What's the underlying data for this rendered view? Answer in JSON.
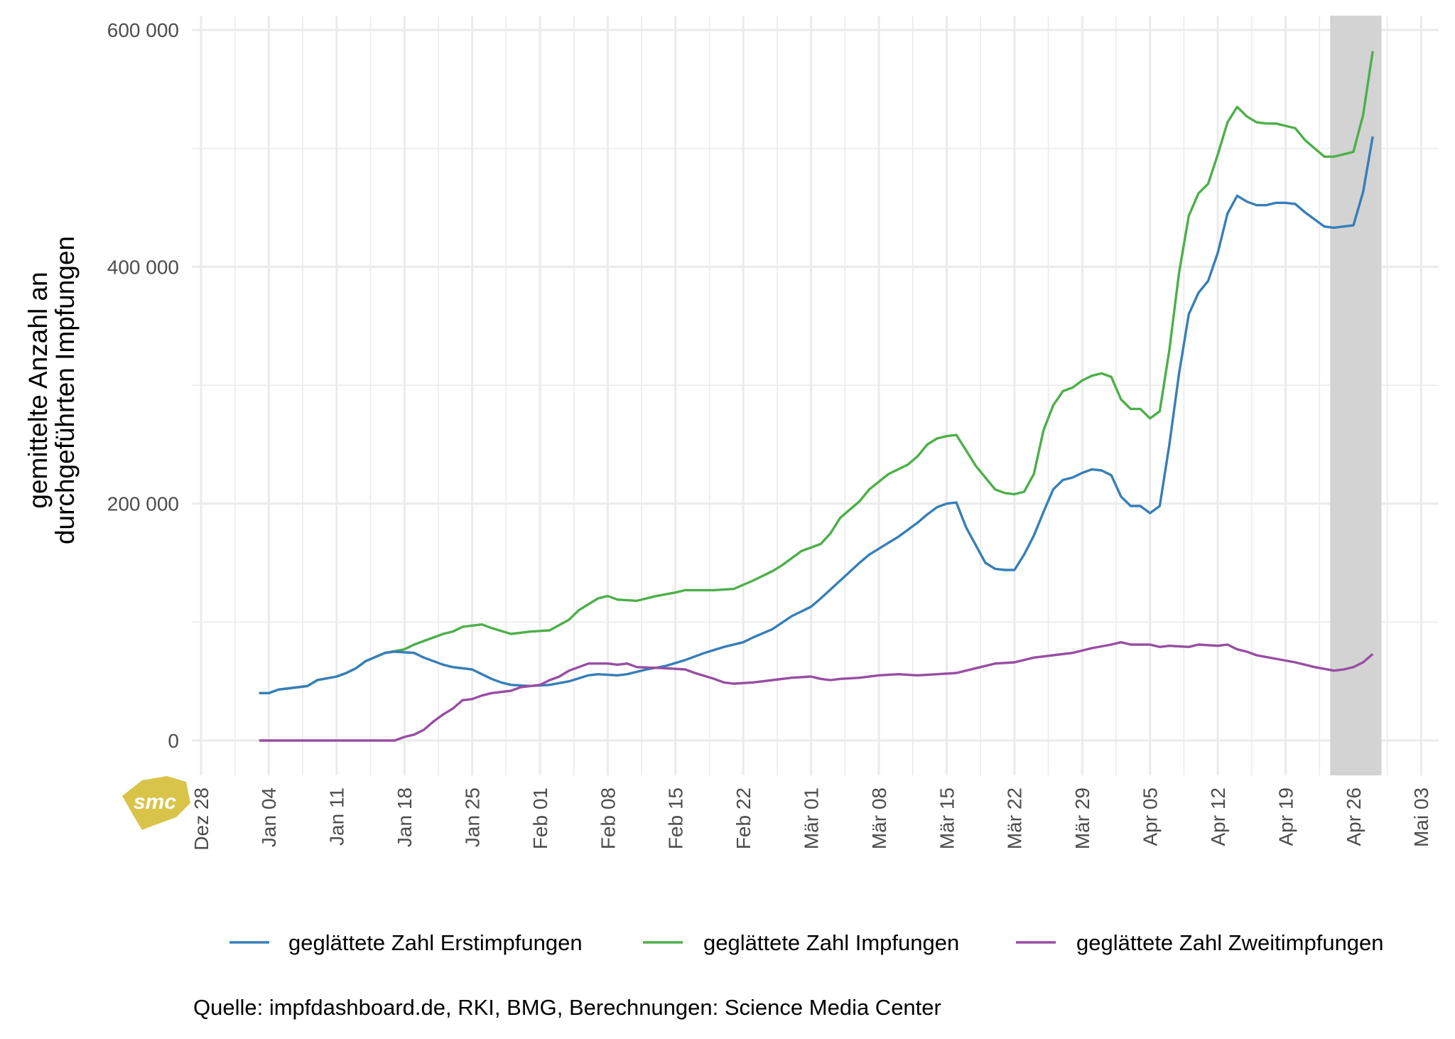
{
  "chart_data": {
    "type": "line",
    "title": "",
    "xlabel": "",
    "ylabel_lines": [
      "gemittelte Anzahl an",
      "durchgeführten Impfungen"
    ],
    "xlim": [
      "12-27",
      "05-04"
    ],
    "ylim": [
      -29000,
      612000
    ],
    "grid": true,
    "legend_position": "bottom",
    "x_ticks": [
      "Dez 28",
      "Jan 04",
      "Jan 11",
      "Jan 18",
      "Jan 25",
      "Feb 01",
      "Feb 08",
      "Feb 15",
      "Feb 22",
      "Mär 01",
      "Mär 08",
      "Mär 15",
      "Mär 22",
      "Mär 29",
      "Apr 05",
      "Apr 12",
      "Apr 19",
      "Apr 26",
      "Mai 03"
    ],
    "x_tick_dates": [
      "12-28",
      "01-04",
      "01-11",
      "01-18",
      "01-25",
      "02-01",
      "02-08",
      "02-15",
      "02-22",
      "03-01",
      "03-08",
      "03-15",
      "03-22",
      "03-29",
      "04-05",
      "04-12",
      "04-19",
      "04-26",
      "05-03"
    ],
    "y_ticks": [
      0,
      200000,
      400000,
      600000
    ],
    "y_tick_labels": [
      "0",
      "200 000",
      "400 000",
      "600 000"
    ],
    "shaded_range": [
      "04-23",
      "04-28"
    ],
    "shade_color": "#d3d3d3",
    "series": [
      {
        "name": "geglättete Zahl Erstimpfungen",
        "color": "#377eb8",
        "points": [
          [
            "01-03",
            40000
          ],
          [
            "01-04",
            40000
          ],
          [
            "01-05",
            43000
          ],
          [
            "01-07",
            45000
          ],
          [
            "01-08",
            46000
          ],
          [
            "01-09",
            51000
          ],
          [
            "01-11",
            54000
          ],
          [
            "01-12",
            57000
          ],
          [
            "01-13",
            61000
          ],
          [
            "01-14",
            67000
          ],
          [
            "01-16",
            74000
          ],
          [
            "01-17",
            75000
          ],
          [
            "01-19",
            74000
          ],
          [
            "01-20",
            70000
          ],
          [
            "01-21",
            67000
          ],
          [
            "01-22",
            64000
          ],
          [
            "01-23",
            62000
          ],
          [
            "01-25",
            60000
          ],
          [
            "01-26",
            56000
          ],
          [
            "01-27",
            52000
          ],
          [
            "01-28",
            49000
          ],
          [
            "01-29",
            47000
          ],
          [
            "01-31",
            46000
          ],
          [
            "02-02",
            47000
          ],
          [
            "02-04",
            50000
          ],
          [
            "02-06",
            55000
          ],
          [
            "02-07",
            56000
          ],
          [
            "02-09",
            55000
          ],
          [
            "02-10",
            56000
          ],
          [
            "02-12",
            60000
          ],
          [
            "02-14",
            63000
          ],
          [
            "02-16",
            68000
          ],
          [
            "02-18",
            74000
          ],
          [
            "02-20",
            79000
          ],
          [
            "02-22",
            83000
          ],
          [
            "02-23",
            87000
          ],
          [
            "02-25",
            94000
          ],
          [
            "02-27",
            105000
          ],
          [
            "03-01",
            113000
          ],
          [
            "03-02",
            120000
          ],
          [
            "03-04",
            135000
          ],
          [
            "03-06",
            150000
          ],
          [
            "03-07",
            157000
          ],
          [
            "03-09",
            167000
          ],
          [
            "03-10",
            172000
          ],
          [
            "03-12",
            184000
          ],
          [
            "03-13",
            191000
          ],
          [
            "03-14",
            197000
          ],
          [
            "03-15",
            200000
          ],
          [
            "03-16",
            201000
          ],
          [
            "03-17",
            180000
          ],
          [
            "03-19",
            150000
          ],
          [
            "03-20",
            145000
          ],
          [
            "03-21",
            144000
          ],
          [
            "03-22",
            144000
          ],
          [
            "03-23",
            157000
          ],
          [
            "03-24",
            173000
          ],
          [
            "03-25",
            193000
          ],
          [
            "03-26",
            212000
          ],
          [
            "03-27",
            220000
          ],
          [
            "03-28",
            222000
          ],
          [
            "03-29",
            226000
          ],
          [
            "03-30",
            229000
          ],
          [
            "03-31",
            228000
          ],
          [
            "04-01",
            224000
          ],
          [
            "04-02",
            206000
          ],
          [
            "04-03",
            198000
          ],
          [
            "04-04",
            198000
          ],
          [
            "04-05",
            192000
          ],
          [
            "04-06",
            198000
          ],
          [
            "04-07",
            250000
          ],
          [
            "04-08",
            310000
          ],
          [
            "04-09",
            360000
          ],
          [
            "04-10",
            378000
          ],
          [
            "04-11",
            388000
          ],
          [
            "04-12",
            412000
          ],
          [
            "04-13",
            445000
          ],
          [
            "04-14",
            460000
          ],
          [
            "04-15",
            455000
          ],
          [
            "04-16",
            452000
          ],
          [
            "04-17",
            452000
          ],
          [
            "04-18",
            454000
          ],
          [
            "04-19",
            454000
          ],
          [
            "04-20",
            453000
          ],
          [
            "04-21",
            446000
          ],
          [
            "04-22",
            440000
          ],
          [
            "04-23",
            434000
          ],
          [
            "04-24",
            433000
          ],
          [
            "04-25",
            434000
          ],
          [
            "04-26",
            435000
          ],
          [
            "04-27",
            463000
          ],
          [
            "04-28",
            510000
          ]
        ]
      },
      {
        "name": "geglättete Zahl Impfungen",
        "color": "#4daf4a",
        "points": [
          [
            "01-03",
            40000
          ],
          [
            "01-04",
            40000
          ],
          [
            "01-05",
            43000
          ],
          [
            "01-07",
            45000
          ],
          [
            "01-08",
            46000
          ],
          [
            "01-09",
            51000
          ],
          [
            "01-11",
            54000
          ],
          [
            "01-12",
            57000
          ],
          [
            "01-13",
            61000
          ],
          [
            "01-14",
            67000
          ],
          [
            "01-16",
            74000
          ],
          [
            "01-18",
            77000
          ],
          [
            "01-19",
            81000
          ],
          [
            "01-20",
            84000
          ],
          [
            "01-22",
            90000
          ],
          [
            "01-23",
            92000
          ],
          [
            "01-24",
            96000
          ],
          [
            "01-25",
            97000
          ],
          [
            "01-26",
            98000
          ],
          [
            "01-27",
            95000
          ],
          [
            "01-29",
            90000
          ],
          [
            "01-31",
            92000
          ],
          [
            "02-02",
            93000
          ],
          [
            "02-04",
            102000
          ],
          [
            "02-05",
            110000
          ],
          [
            "02-07",
            120000
          ],
          [
            "02-08",
            122000
          ],
          [
            "02-09",
            119000
          ],
          [
            "02-11",
            118000
          ],
          [
            "02-13",
            122000
          ],
          [
            "02-15",
            125000
          ],
          [
            "02-16",
            127000
          ],
          [
            "02-19",
            127000
          ],
          [
            "02-21",
            128000
          ],
          [
            "02-23",
            135000
          ],
          [
            "02-25",
            143000
          ],
          [
            "02-26",
            148000
          ],
          [
            "02-28",
            160000
          ],
          [
            "03-02",
            166000
          ],
          [
            "03-03",
            175000
          ],
          [
            "03-04",
            188000
          ],
          [
            "03-06",
            202000
          ],
          [
            "03-07",
            212000
          ],
          [
            "03-09",
            225000
          ],
          [
            "03-11",
            233000
          ],
          [
            "03-12",
            240000
          ],
          [
            "03-13",
            250000
          ],
          [
            "03-14",
            255000
          ],
          [
            "03-15",
            257000
          ],
          [
            "03-16",
            258000
          ],
          [
            "03-17",
            245000
          ],
          [
            "03-18",
            232000
          ],
          [
            "03-20",
            212000
          ],
          [
            "03-21",
            209000
          ],
          [
            "03-22",
            208000
          ],
          [
            "03-23",
            210000
          ],
          [
            "03-24",
            225000
          ],
          [
            "03-25",
            262000
          ],
          [
            "03-26",
            283000
          ],
          [
            "03-27",
            295000
          ],
          [
            "03-28",
            298000
          ],
          [
            "03-29",
            304000
          ],
          [
            "03-30",
            308000
          ],
          [
            "03-31",
            310000
          ],
          [
            "04-01",
            307000
          ],
          [
            "04-02",
            288000
          ],
          [
            "04-03",
            280000
          ],
          [
            "04-04",
            280000
          ],
          [
            "04-05",
            272000
          ],
          [
            "04-06",
            278000
          ],
          [
            "04-07",
            330000
          ],
          [
            "04-08",
            395000
          ],
          [
            "04-09",
            443000
          ],
          [
            "04-10",
            462000
          ],
          [
            "04-11",
            470000
          ],
          [
            "04-12",
            495000
          ],
          [
            "04-13",
            522000
          ],
          [
            "04-14",
            535000
          ],
          [
            "04-15",
            527000
          ],
          [
            "04-16",
            522000
          ],
          [
            "04-17",
            521000
          ],
          [
            "04-18",
            521000
          ],
          [
            "04-19",
            519000
          ],
          [
            "04-20",
            517000
          ],
          [
            "04-21",
            507000
          ],
          [
            "04-22",
            500000
          ],
          [
            "04-23",
            493000
          ],
          [
            "04-24",
            493000
          ],
          [
            "04-25",
            495000
          ],
          [
            "04-26",
            497000
          ],
          [
            "04-27",
            528000
          ],
          [
            "04-28",
            582000
          ]
        ]
      },
      {
        "name": "geglättete Zahl Zweitimpfungen",
        "color": "#984ea3",
        "points": [
          [
            "01-03",
            0
          ],
          [
            "01-17",
            0
          ],
          [
            "01-18",
            3000
          ],
          [
            "01-19",
            5000
          ],
          [
            "01-20",
            9000
          ],
          [
            "01-21",
            16000
          ],
          [
            "01-22",
            22000
          ],
          [
            "01-23",
            27000
          ],
          [
            "01-24",
            34000
          ],
          [
            "01-25",
            35000
          ],
          [
            "01-26",
            38000
          ],
          [
            "01-27",
            40000
          ],
          [
            "01-29",
            42000
          ],
          [
            "01-30",
            45000
          ],
          [
            "02-01",
            47000
          ],
          [
            "02-02",
            51000
          ],
          [
            "02-03",
            54000
          ],
          [
            "02-04",
            59000
          ],
          [
            "02-05",
            62000
          ],
          [
            "02-06",
            65000
          ],
          [
            "02-08",
            65000
          ],
          [
            "02-09",
            64000
          ],
          [
            "02-10",
            65000
          ],
          [
            "02-11",
            62000
          ],
          [
            "02-14",
            61000
          ],
          [
            "02-16",
            60000
          ],
          [
            "02-17",
            57000
          ],
          [
            "02-19",
            52000
          ],
          [
            "02-20",
            49000
          ],
          [
            "02-21",
            48000
          ],
          [
            "02-23",
            49000
          ],
          [
            "02-25",
            51000
          ],
          [
            "02-27",
            53000
          ],
          [
            "03-01",
            54000
          ],
          [
            "03-02",
            52000
          ],
          [
            "03-03",
            51000
          ],
          [
            "03-04",
            52000
          ],
          [
            "03-06",
            53000
          ],
          [
            "03-08",
            55000
          ],
          [
            "03-10",
            56000
          ],
          [
            "03-12",
            55000
          ],
          [
            "03-14",
            56000
          ],
          [
            "03-16",
            57000
          ],
          [
            "03-18",
            61000
          ],
          [
            "03-20",
            65000
          ],
          [
            "03-22",
            66000
          ],
          [
            "03-24",
            70000
          ],
          [
            "03-26",
            72000
          ],
          [
            "03-28",
            74000
          ],
          [
            "03-30",
            78000
          ],
          [
            "04-01",
            81000
          ],
          [
            "04-02",
            83000
          ],
          [
            "04-03",
            81000
          ],
          [
            "04-05",
            81000
          ],
          [
            "04-06",
            79000
          ],
          [
            "04-07",
            80000
          ],
          [
            "04-09",
            79000
          ],
          [
            "04-10",
            81000
          ],
          [
            "04-12",
            80000
          ],
          [
            "04-13",
            81000
          ],
          [
            "04-14",
            77000
          ],
          [
            "04-15",
            75000
          ],
          [
            "04-16",
            72000
          ],
          [
            "04-18",
            69000
          ],
          [
            "04-20",
            66000
          ],
          [
            "04-22",
            62000
          ],
          [
            "04-24",
            59000
          ],
          [
            "04-25",
            60000
          ],
          [
            "04-26",
            62000
          ],
          [
            "04-27",
            66000
          ],
          [
            "04-28",
            73000
          ]
        ]
      }
    ]
  },
  "caption": "Quelle: impfdashboard.de, RKI, BMG, Berechnungen: Science Media Center",
  "logo": {
    "text": "smc",
    "color": "#d9c44a"
  }
}
